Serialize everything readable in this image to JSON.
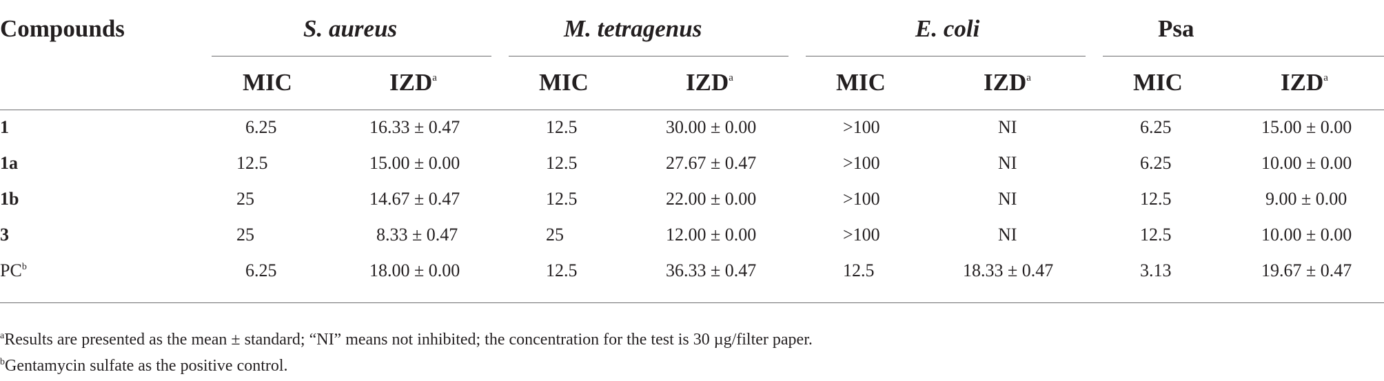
{
  "table": {
    "compounds_header": "Compounds",
    "organisms": [
      "S. aureus",
      "M. tetragenus",
      "E. coli",
      "Psa"
    ],
    "organism_italic": [
      true,
      true,
      true,
      false
    ],
    "subheaders": {
      "mic": "MIC",
      "izd": "IZD",
      "izd_sup": "a"
    },
    "rows": [
      {
        "label": "1",
        "label_bold": true,
        "label_sup": "",
        "values": [
          "6.25",
          "16.33 ± 0.47",
          "12.5",
          "30.00 ± 0.00",
          ">100",
          "NI",
          "6.25",
          "15.00 ± 0.00"
        ]
      },
      {
        "label": "1a",
        "label_bold": true,
        "label_sup": "",
        "values": [
          "12.5",
          "15.00 ± 0.00",
          "12.5",
          "27.67 ± 0.47",
          ">100",
          "NI",
          "6.25",
          "10.00 ± 0.00"
        ]
      },
      {
        "label": "1b",
        "label_bold": true,
        "label_sup": "",
        "values": [
          "25",
          "14.67 ± 0.47",
          "12.5",
          "22.00 ± 0.00",
          ">100",
          "NI",
          "12.5",
          "9.00 ± 0.00"
        ]
      },
      {
        "label": "3",
        "label_bold": true,
        "label_sup": "",
        "values": [
          "25",
          "8.33 ± 0.47",
          "25",
          "12.00 ± 0.00",
          ">100",
          "NI",
          "12.5",
          "10.00 ± 0.00"
        ]
      },
      {
        "label": "PC",
        "label_bold": false,
        "label_sup": "b",
        "values": [
          "6.25",
          "18.00 ± 0.00",
          "12.5",
          "36.33 ± 0.47",
          "12.5",
          "18.33 ± 0.47",
          "3.13",
          "19.67 ± 0.47"
        ]
      }
    ]
  },
  "footnotes": [
    {
      "mark": "a",
      "text": "Results are presented as the mean ± standard; “NI” means not inhibited; the concentration for the test is 30 µg/filter paper."
    },
    {
      "mark": "b",
      "text": "Gentamycin sulfate as the positive control."
    }
  ]
}
